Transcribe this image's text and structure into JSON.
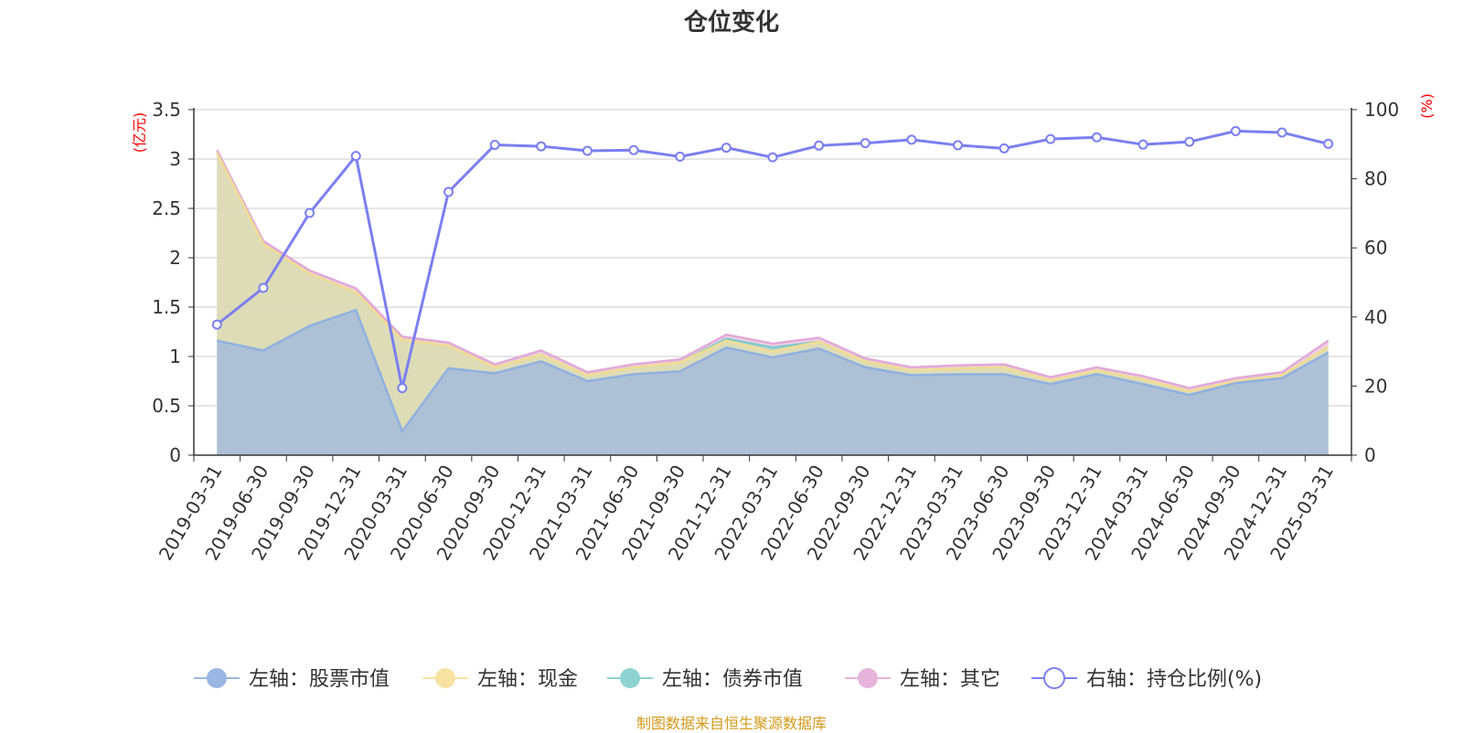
{
  "title": "仓位变化",
  "footer": "制图数据来自恒生聚源数据库",
  "colors": {
    "stock": "#9ab6e2",
    "cash": "#f7e2a1",
    "bond": "#8fd2d2",
    "other": "#e6b4da",
    "ratio": "#7b7ff0",
    "unit": "#ff0000",
    "footer": "#d39a1c",
    "grid": "#cccccc",
    "text": "#333333"
  },
  "chart_data": {
    "type": "area",
    "title": "仓位变化",
    "left_axis": {
      "unit": "(亿元)",
      "ylim": [
        0,
        3.5
      ],
      "ticks": [
        "0",
        "0.5",
        "1",
        "1.5",
        "2",
        "2.5",
        "3",
        "3.5"
      ]
    },
    "right_axis": {
      "unit": "(%)",
      "ylim": [
        0,
        100
      ],
      "ticks": [
        "0",
        "20",
        "40",
        "60",
        "80",
        "100"
      ]
    },
    "grid": true,
    "legend_position": "bottom",
    "categories": [
      "2019-03-31",
      "2019-06-30",
      "2019-09-30",
      "2019-12-31",
      "2020-03-31",
      "2020-06-30",
      "2020-09-30",
      "2020-12-31",
      "2021-03-31",
      "2021-06-30",
      "2021-09-30",
      "2021-12-31",
      "2022-03-31",
      "2022-06-30",
      "2022-09-30",
      "2022-12-31",
      "2023-03-31",
      "2023-06-30",
      "2023-09-30",
      "2023-12-31",
      "2024-03-31",
      "2024-06-30",
      "2024-09-30",
      "2024-12-31",
      "2025-03-31"
    ],
    "series": [
      {
        "name": "左轴：股票市值",
        "axis": "left",
        "stack": true,
        "values": [
          1.16,
          1.06,
          1.31,
          1.47,
          0.24,
          0.88,
          0.83,
          0.95,
          0.75,
          0.82,
          0.85,
          1.09,
          0.99,
          1.08,
          0.89,
          0.81,
          0.82,
          0.82,
          0.72,
          0.82,
          0.72,
          0.61,
          0.73,
          0.78,
          1.04
        ]
      },
      {
        "name": "左轴：现金",
        "axis": "left",
        "stack": true,
        "values": [
          1.9,
          1.08,
          0.53,
          0.18,
          0.93,
          0.23,
          0.06,
          0.07,
          0.06,
          0.07,
          0.09,
          0.07,
          0.06,
          0.07,
          0.06,
          0.05,
          0.06,
          0.07,
          0.04,
          0.04,
          0.05,
          0.04,
          0.02,
          0.03,
          0.06
        ]
      },
      {
        "name": "左轴：债券市值",
        "axis": "left",
        "stack": true,
        "values": [
          0,
          0,
          0,
          0,
          0,
          0,
          0,
          0,
          0,
          0,
          0,
          0.02,
          0.04,
          0,
          0,
          0,
          0,
          0,
          0,
          0,
          0,
          0,
          0,
          0,
          0
        ]
      },
      {
        "name": "左轴：其它",
        "axis": "left",
        "stack": true,
        "values": [
          0.03,
          0.03,
          0.03,
          0.04,
          0.03,
          0.03,
          0.03,
          0.04,
          0.03,
          0.03,
          0.03,
          0.04,
          0.04,
          0.04,
          0.03,
          0.03,
          0.03,
          0.03,
          0.03,
          0.03,
          0.03,
          0.03,
          0.03,
          0.03,
          0.06
        ]
      },
      {
        "name": "右轴：持仓比例(%)",
        "axis": "right",
        "type": "line",
        "values": [
          37.8,
          48.4,
          70.1,
          86.6,
          19.4,
          76.2,
          89.8,
          89.4,
          88.1,
          88.3,
          86.4,
          89.0,
          86.2,
          89.6,
          90.3,
          91.3,
          89.7,
          88.8,
          91.5,
          92.0,
          89.9,
          90.7,
          93.8,
          93.4,
          90.1
        ]
      }
    ]
  }
}
